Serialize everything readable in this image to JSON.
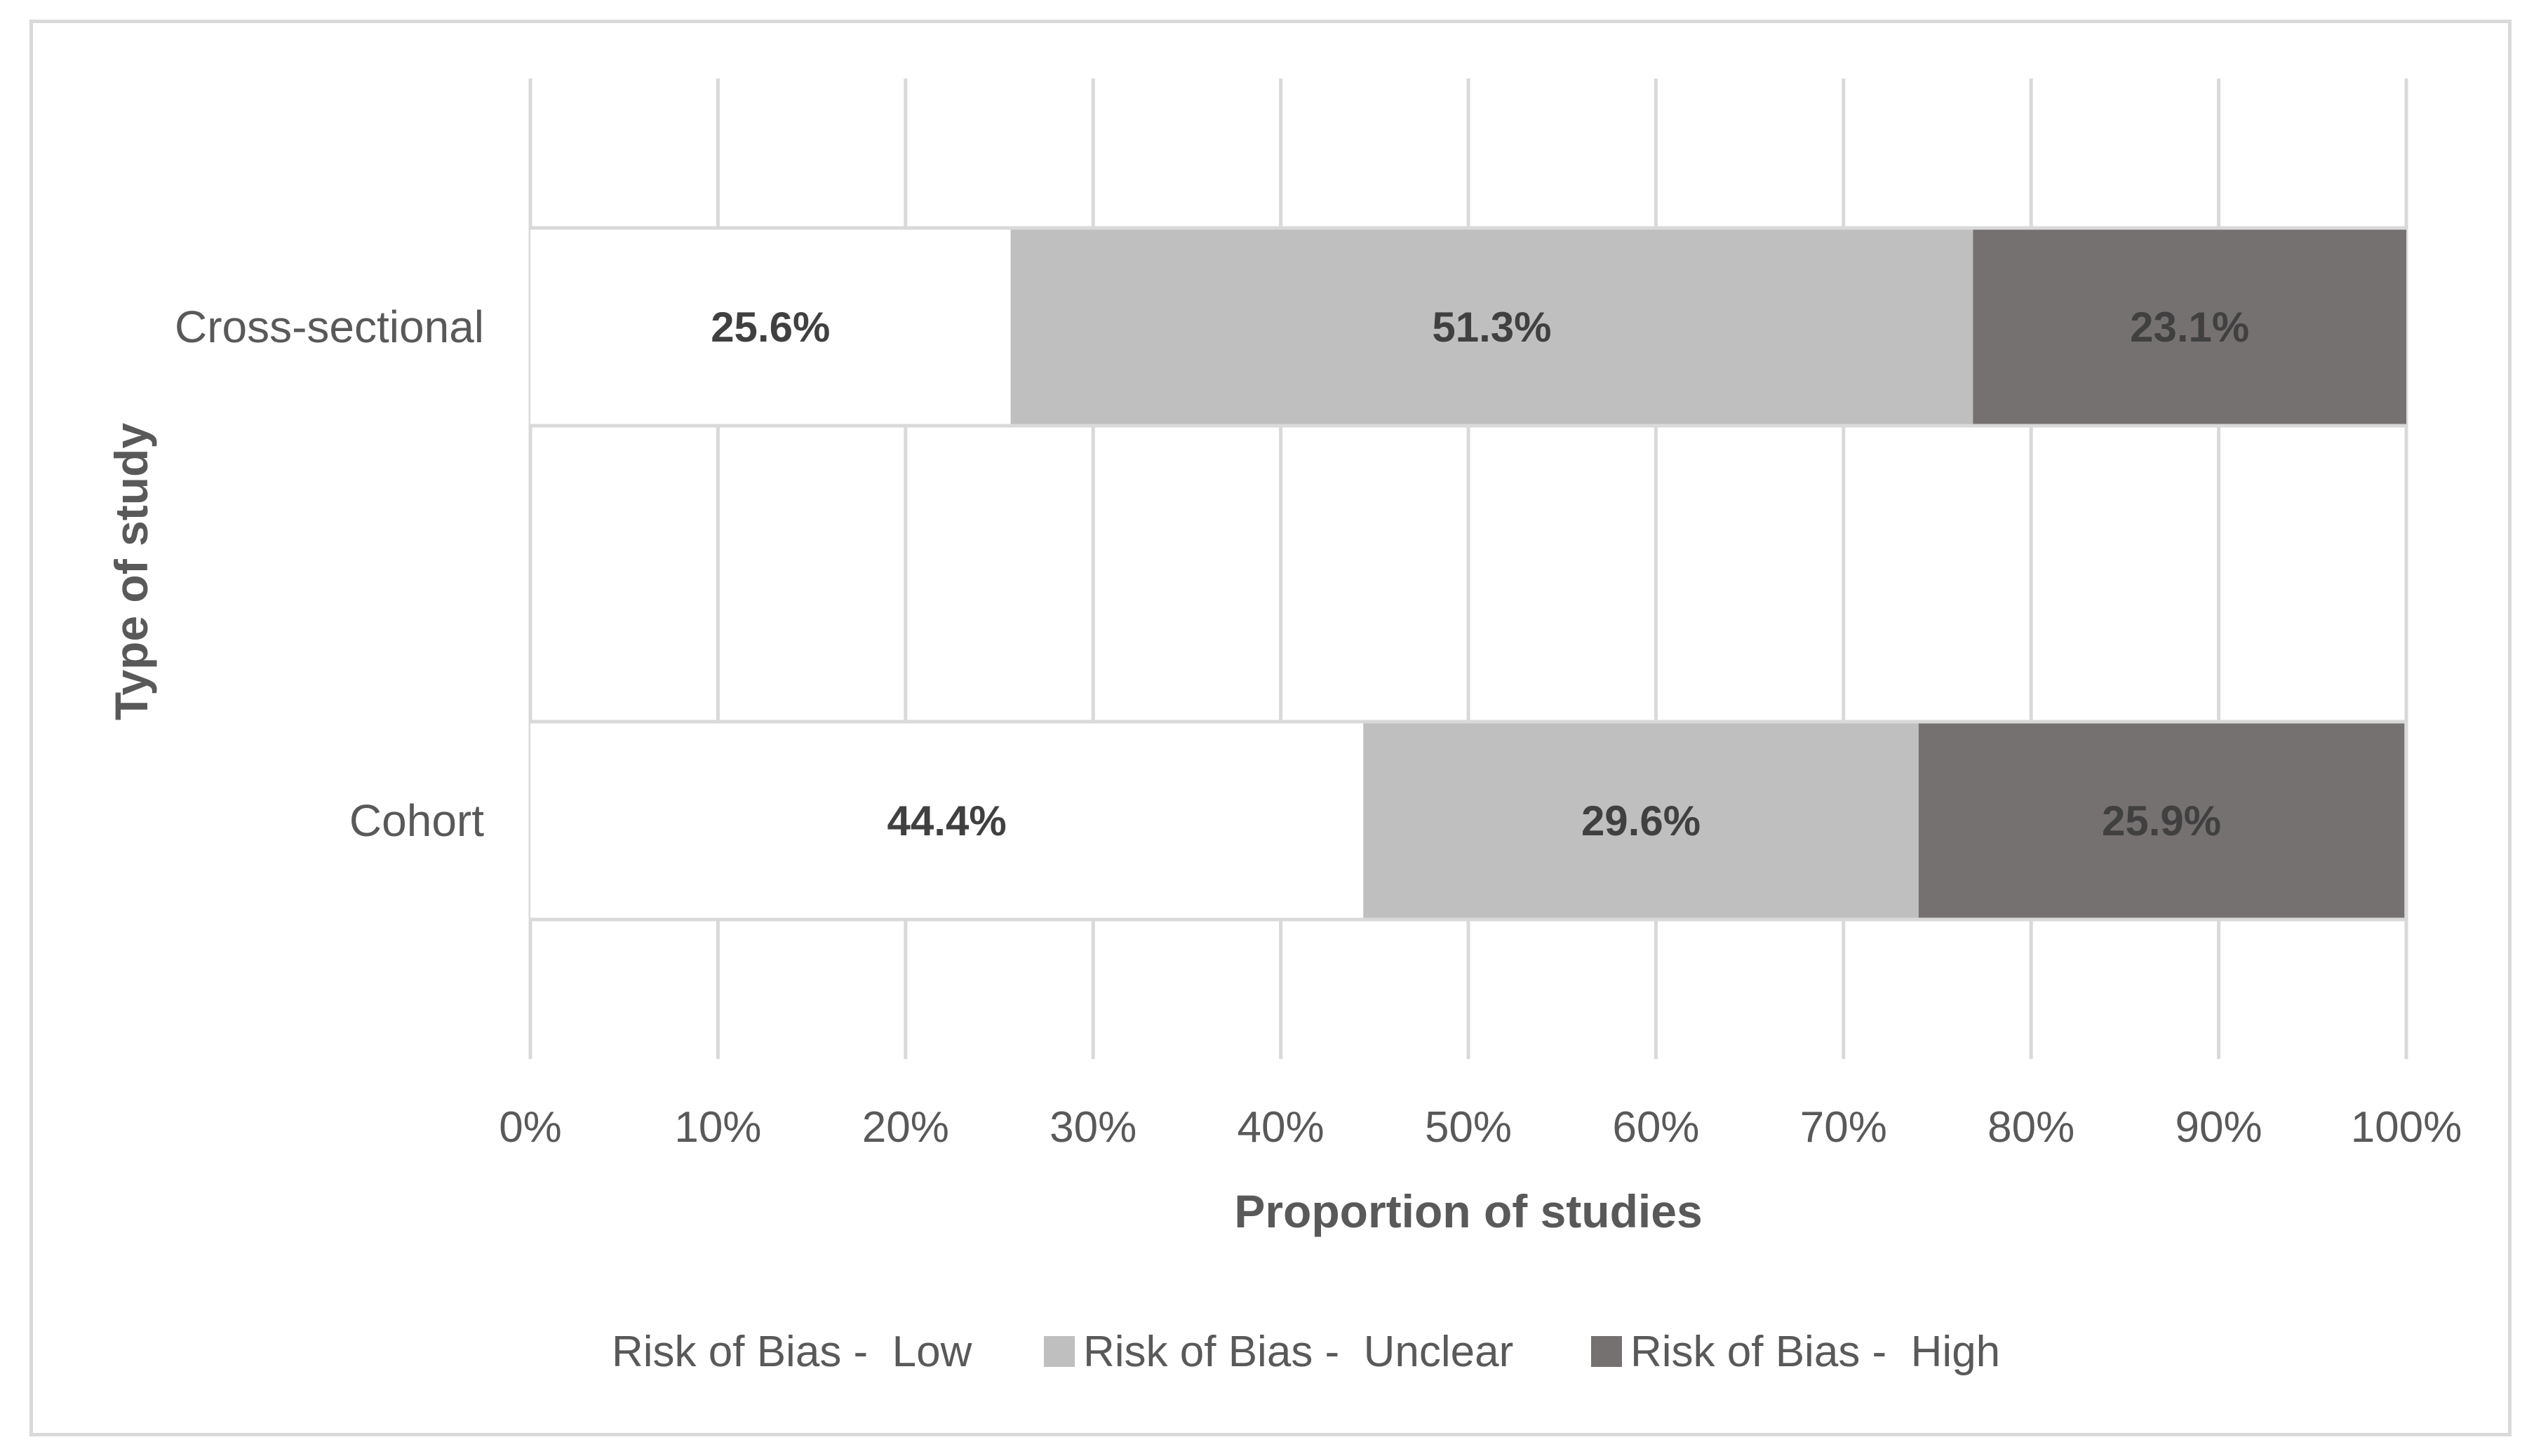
{
  "chart_data": {
    "type": "bar",
    "orientation": "horizontal",
    "stacked": true,
    "title": "",
    "xlabel": "Proportion of studies",
    "ylabel": "Type of study",
    "xlim": [
      0,
      100
    ],
    "x_ticks": [
      "0%",
      "10%",
      "20%",
      "30%",
      "40%",
      "50%",
      "60%",
      "70%",
      "80%",
      "90%",
      "100%"
    ],
    "grid": "vertical",
    "legend_position": "bottom",
    "categories": [
      "Cross-sectional",
      "Cohort"
    ],
    "series": [
      {
        "name": "Risk of Bias -  Low",
        "values": [
          25.6,
          44.4
        ],
        "labels": [
          "25.6%",
          "44.4%"
        ],
        "color": "#ffffff"
      },
      {
        "name": "Risk of Bias -  Unclear",
        "values": [
          51.3,
          29.6
        ],
        "labels": [
          "51.3%",
          "29.6%"
        ],
        "color": "#bfbfbf"
      },
      {
        "name": "Risk of Bias -  High",
        "values": [
          23.1,
          25.9
        ],
        "labels": [
          "23.1%",
          "25.9%"
        ],
        "color": "#767171"
      }
    ]
  }
}
